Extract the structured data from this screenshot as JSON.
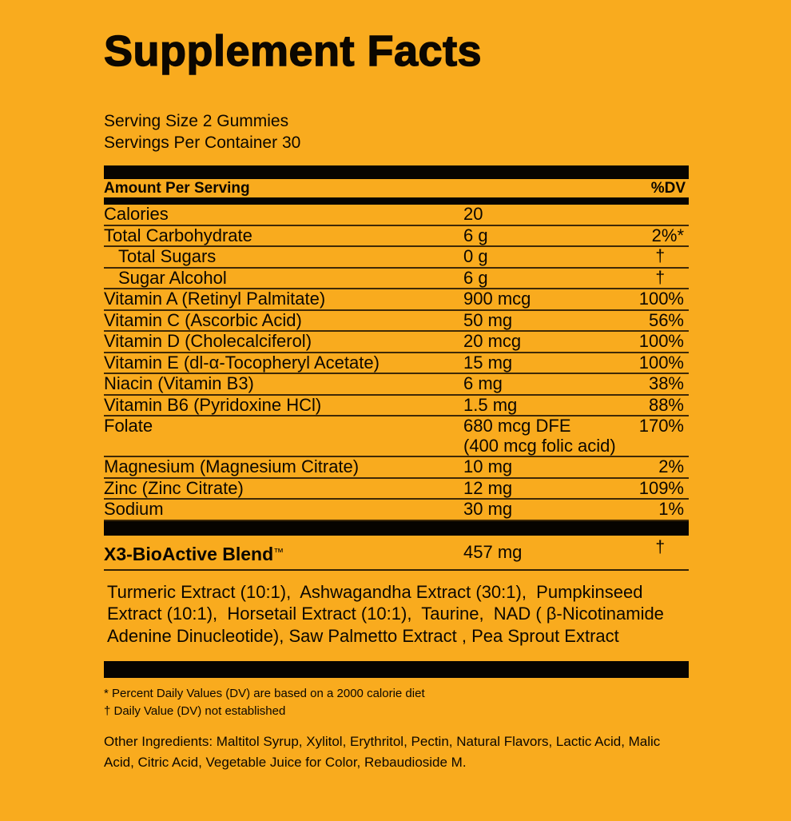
{
  "title": "Supplement Facts",
  "serving": {
    "size": "Serving Size 2 Gummies",
    "per_container": "Servings Per Container 30"
  },
  "table": {
    "header": {
      "amount_label": "Amount Per Serving",
      "dv_label": "%DV"
    },
    "rows": [
      {
        "label": "Calories",
        "amount": "20",
        "dv": "",
        "indent": false
      },
      {
        "label": "Total Carbohydrate",
        "amount": "6 g",
        "dv": "2%*",
        "indent": false
      },
      {
        "label": "Total Sugars",
        "amount": "0 g",
        "dv": "†",
        "indent": true
      },
      {
        "label": "Sugar Alcohol",
        "amount": "6 g",
        "dv": "†",
        "indent": true
      },
      {
        "label": "Vitamin A (Retinyl Palmitate)",
        "amount": "900 mcg",
        "dv": "100%",
        "indent": false
      },
      {
        "label": "Vitamin C (Ascorbic Acid)",
        "amount": "50 mg",
        "dv": "56%",
        "indent": false
      },
      {
        "label": "Vitamin D (Cholecalciferol)",
        "amount": "20 mcg",
        "dv": "100%",
        "indent": false
      },
      {
        "label": "Vitamin E (dl-α-Tocopheryl Acetate)",
        "amount": "15 mg",
        "dv": "100%",
        "indent": false
      },
      {
        "label": "Niacin (Vitamin B3)",
        "amount": "6 mg",
        "dv": "38%",
        "indent": false
      },
      {
        "label": "Vitamin B6 (Pyridoxine HCl)",
        "amount": "1.5 mg",
        "dv": "88%",
        "indent": false
      },
      {
        "label": "Folate",
        "amount": "680 mcg DFE",
        "amount2": "(400 mcg folic acid)",
        "dv": "170%",
        "indent": false
      },
      {
        "label": "Magnesium (Magnesium Citrate)",
        "amount": "10 mg",
        "dv": "2%",
        "indent": false
      },
      {
        "label": "Zinc (Zinc Citrate)",
        "amount": "12 mg",
        "dv": "109%",
        "indent": false
      },
      {
        "label": "Sodium",
        "amount": "30 mg",
        "dv": "1%",
        "indent": false
      }
    ]
  },
  "blend": {
    "name": "X3-BioActive Blend",
    "tm": "™",
    "amount": "457 mg",
    "dv": "†",
    "ingredients": "Turmeric Extract (10:1),  Ashwagandha Extract (30:1),  Pumpkinseed Extract (10:1),  Horsetail Extract (10:1),  Taurine,  NAD ( β-Nicotinamide Adenine Dinucleotide), Saw Palmetto Extract , Pea Sprout Extract"
  },
  "footnotes": {
    "dv_note": "* Percent Daily Values (DV) are based on a 2000 calorie diet",
    "dagger_note": "† Daily Value (DV) not established"
  },
  "other_ingredients": "Other Ingredients: Maltitol Syrup, Xylitol, Erythritol, Pectin, Natural Flavors, Lactic Acid, Malic Acid, Citric Acid, Vegetable Juice for Color, Rebaudioside M.",
  "colors": {
    "background": "#F9AB1E",
    "ink": "#0C0700",
    "bar": "#070400"
  }
}
